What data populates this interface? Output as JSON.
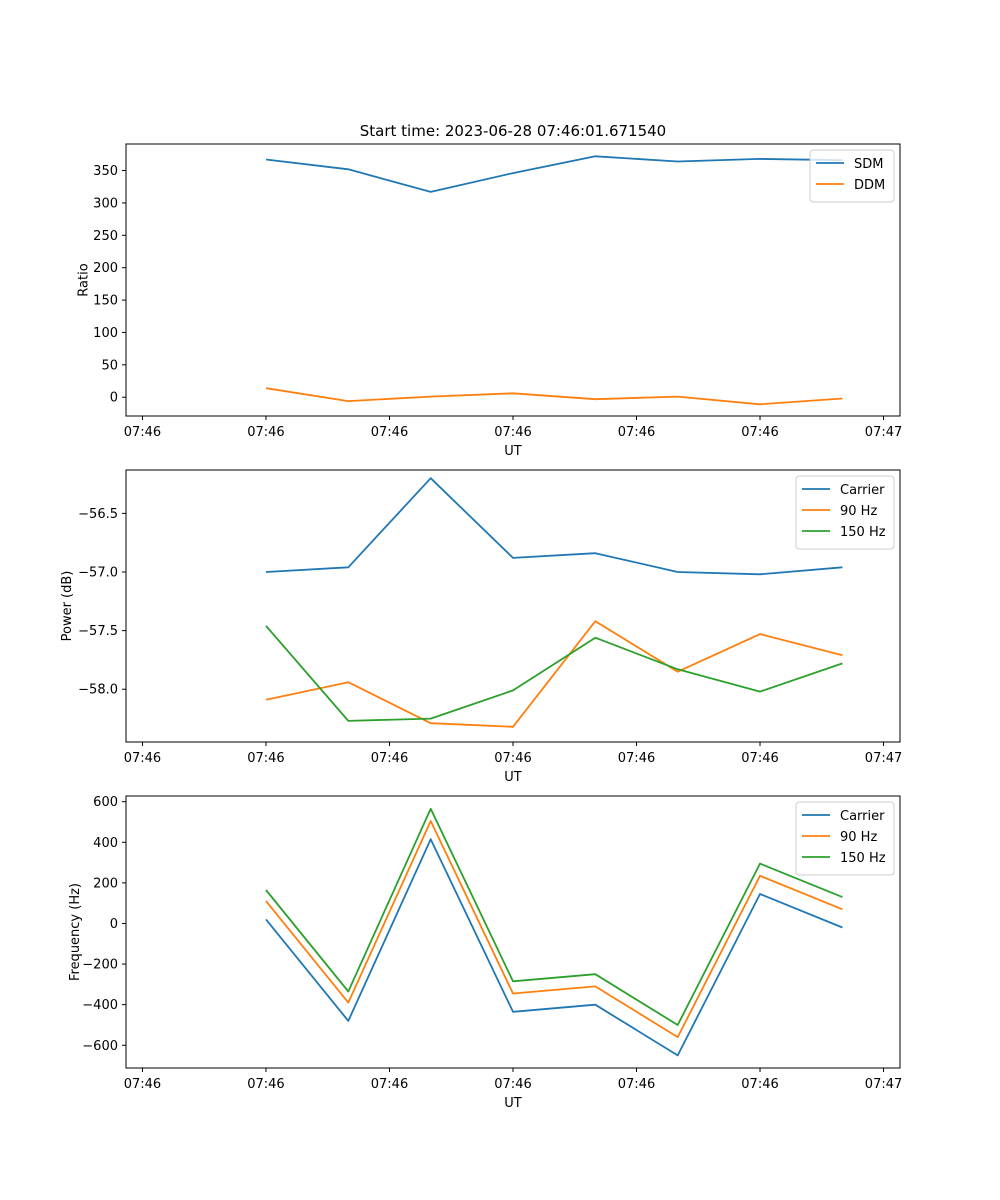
{
  "title": "Start time: 2023-06-28 07:46:01.671540",
  "colors": {
    "blue": "#1f77b4",
    "orange": "#ff7f0e",
    "green": "#2ca02c"
  },
  "chart_data": [
    {
      "type": "line",
      "title": "Start time: 2023-06-28 07:46:01.671540",
      "xlabel": "UT",
      "ylabel": "Ratio",
      "x": [
        1,
        2,
        3,
        4,
        5,
        6,
        7,
        8
      ],
      "xlim": [
        -0.7,
        8.7
      ],
      "x_ticks": [
        -0.5,
        1.0,
        2.5,
        4.0,
        5.5,
        7.0,
        8.5
      ],
      "x_tick_labels": [
        "07:46",
        "07:46",
        "07:46",
        "07:46",
        "07:46",
        "07:46",
        "07:47"
      ],
      "ylim": [
        -29,
        391
      ],
      "y_ticks": [
        0,
        50,
        100,
        150,
        200,
        250,
        300,
        350
      ],
      "y_tick_labels": [
        "0",
        "50",
        "100",
        "150",
        "200",
        "250",
        "300",
        "350"
      ],
      "legend_position": "upper right",
      "grid": false,
      "series": [
        {
          "name": "SDM",
          "color": "#1f77b4",
          "values": [
            367,
            352,
            317,
            346,
            372,
            364,
            368,
            366
          ]
        },
        {
          "name": "DDM",
          "color": "#ff7f0e",
          "values": [
            14,
            -6,
            1,
            6,
            -3,
            1,
            -11,
            -2
          ]
        }
      ]
    },
    {
      "type": "line",
      "title": "",
      "xlabel": "UT",
      "ylabel": "Power (dB)",
      "x": [
        1,
        2,
        3,
        4,
        5,
        6,
        7,
        8
      ],
      "xlim": [
        -0.7,
        8.7
      ],
      "x_ticks": [
        -0.5,
        1.0,
        2.5,
        4.0,
        5.5,
        7.0,
        8.5
      ],
      "x_tick_labels": [
        "07:46",
        "07:46",
        "07:46",
        "07:46",
        "07:46",
        "07:46",
        "07:47"
      ],
      "ylim": [
        -58.45,
        -56.13
      ],
      "y_ticks": [
        -58.0,
        -57.5,
        -57.0,
        -56.5
      ],
      "y_tick_labels": [
        "−58.0",
        "−57.5",
        "−57.0",
        "−56.5"
      ],
      "legend_position": "upper right",
      "grid": false,
      "series": [
        {
          "name": "Carrier",
          "color": "#1f77b4",
          "values": [
            -57.0,
            -56.96,
            -56.2,
            -56.88,
            -56.84,
            -57.0,
            -57.02,
            -56.96
          ]
        },
        {
          "name": "90 Hz",
          "color": "#ff7f0e",
          "values": [
            -58.09,
            -57.94,
            -58.29,
            -58.32,
            -57.42,
            -57.85,
            -57.53,
            -57.71
          ]
        },
        {
          "name": "150 Hz",
          "color": "#2ca02c",
          "values": [
            -57.46,
            -58.27,
            -58.25,
            -58.01,
            -57.56,
            -57.83,
            -58.02,
            -57.78
          ]
        }
      ]
    },
    {
      "type": "line",
      "title": "",
      "xlabel": "UT",
      "ylabel": "Frequency (Hz)",
      "x": [
        1,
        2,
        3,
        4,
        5,
        6,
        7,
        8
      ],
      "xlim": [
        -0.7,
        8.7
      ],
      "x_ticks": [
        -0.5,
        1.0,
        2.5,
        4.0,
        5.5,
        7.0,
        8.5
      ],
      "x_tick_labels": [
        "07:46",
        "07:46",
        "07:46",
        "07:46",
        "07:46",
        "07:46",
        "07:47"
      ],
      "ylim": [
        -712,
        628
      ],
      "y_ticks": [
        -600,
        -400,
        -200,
        0,
        200,
        400,
        600
      ],
      "y_tick_labels": [
        "−600",
        "−400",
        "−200",
        "0",
        "200",
        "400",
        "600"
      ],
      "legend_position": "upper right",
      "grid": false,
      "series": [
        {
          "name": "Carrier",
          "color": "#1f77b4",
          "values": [
            20,
            -480,
            415,
            -435,
            -400,
            -650,
            145,
            -20
          ]
        },
        {
          "name": "90 Hz",
          "color": "#ff7f0e",
          "values": [
            110,
            -390,
            505,
            -345,
            -310,
            -560,
            235,
            70
          ]
        },
        {
          "name": "150 Hz",
          "color": "#2ca02c",
          "values": [
            165,
            -335,
            565,
            -285,
            -250,
            -500,
            295,
            130
          ]
        }
      ]
    }
  ]
}
